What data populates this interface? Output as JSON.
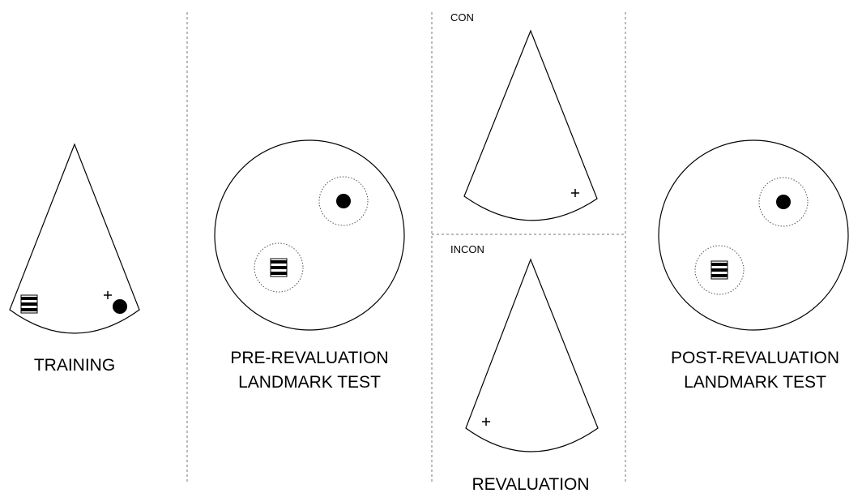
{
  "panels": [
    {
      "label": [
        "TRAINING"
      ]
    },
    {
      "label": [
        "PRE-REVALUATION",
        "LANDMARK TEST"
      ]
    },
    {
      "label": [
        "REVALUATION"
      ],
      "conditions": [
        "CON",
        "INCON"
      ]
    },
    {
      "label": [
        "POST-REVALUATION",
        "LANDMARK TEST"
      ]
    }
  ]
}
